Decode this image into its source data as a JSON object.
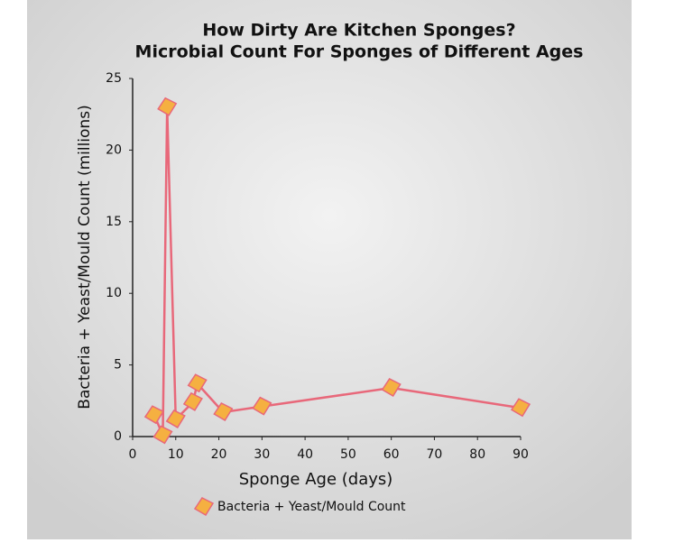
{
  "chart_data": {
    "type": "line",
    "title": "How Dirty Are Kitchen Sponges?",
    "subtitle": "Microbial Count For Sponges of Different Ages",
    "x_label": "Sponge Age (days)",
    "y_label": "Bacteria + Yeast/Mould Count (millions)",
    "x": [
      5,
      7,
      8,
      10,
      14,
      15,
      21,
      30,
      60,
      90
    ],
    "series": [
      {
        "name": "Bacteria + Yeast/Mould Count",
        "color": "#e8687a",
        "values": [
          1.5,
          0.1,
          23,
          1.2,
          2.4,
          3.7,
          1.7,
          2.1,
          3.4,
          2.0
        ]
      }
    ],
    "marker_color": "#f5b041",
    "xlim": [
      0,
      90
    ],
    "xticks": [
      0,
      10,
      20,
      30,
      40,
      50,
      60,
      70,
      80,
      90
    ],
    "ylim": [
      0,
      25
    ],
    "yticks": [
      0,
      5,
      10,
      15,
      20,
      25
    ],
    "legend": "bottom"
  }
}
